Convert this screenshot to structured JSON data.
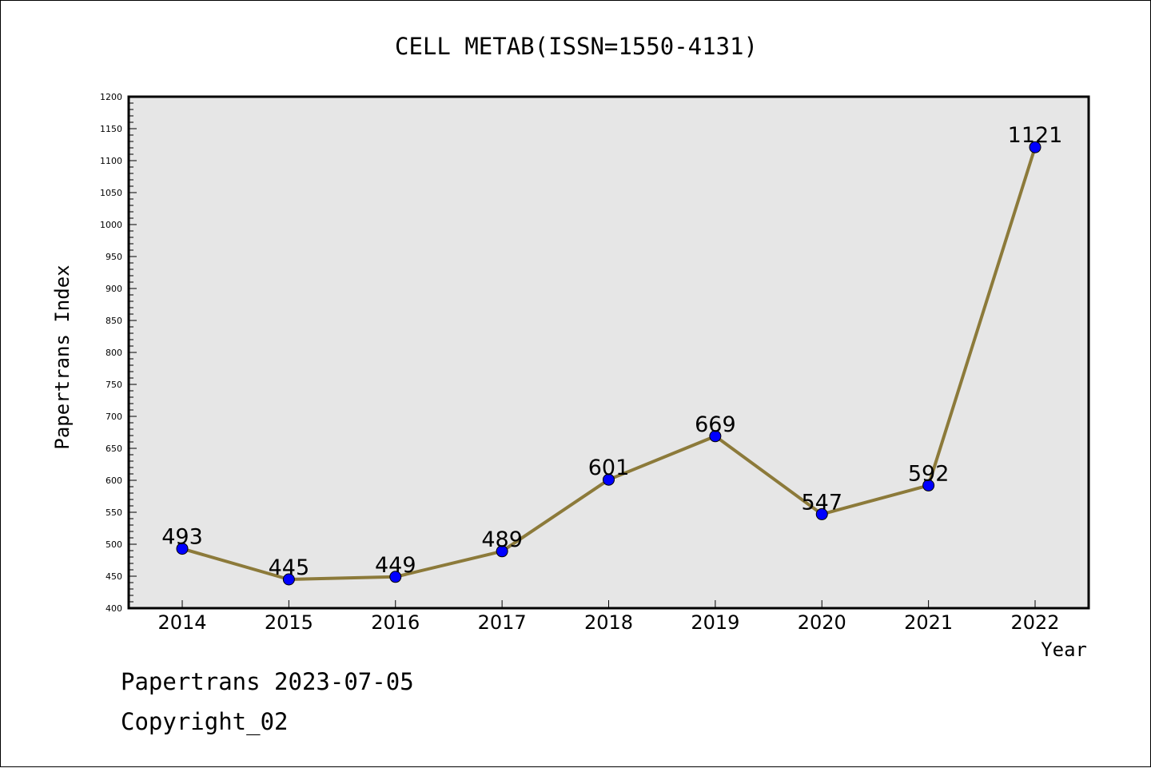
{
  "chart_data": {
    "type": "line",
    "title": "CELL METAB(ISSN=1550-4131)",
    "xlabel": "Year",
    "ylabel": "Papertrans Index",
    "categories": [
      "2014",
      "2015",
      "2016",
      "2017",
      "2018",
      "2019",
      "2020",
      "2021",
      "2022"
    ],
    "series": [
      {
        "values": [
          493,
          445,
          449,
          489,
          601,
          669,
          547,
          592,
          1121
        ],
        "line_color": "#8c7a3a",
        "marker_color": "#0000ff"
      }
    ],
    "data_labels": [
      "493",
      "445",
      "449",
      "489",
      "601",
      "669",
      "547",
      "592",
      "1121"
    ],
    "ylim": [
      400,
      1200
    ],
    "y_major_step": 50,
    "y_minor_step": 10,
    "y_tick_labels": [
      "400",
      "450",
      "500",
      "550",
      "600",
      "650",
      "700",
      "750",
      "800",
      "850",
      "900",
      "950",
      "1000",
      "1050",
      "1100",
      "1150",
      "1200"
    ],
    "grid": false,
    "legend": "none",
    "plot_background": "#e6e6e6"
  },
  "footer": {
    "line1": "Papertrans 2023-07-05",
    "line2": "Copyright_02"
  }
}
